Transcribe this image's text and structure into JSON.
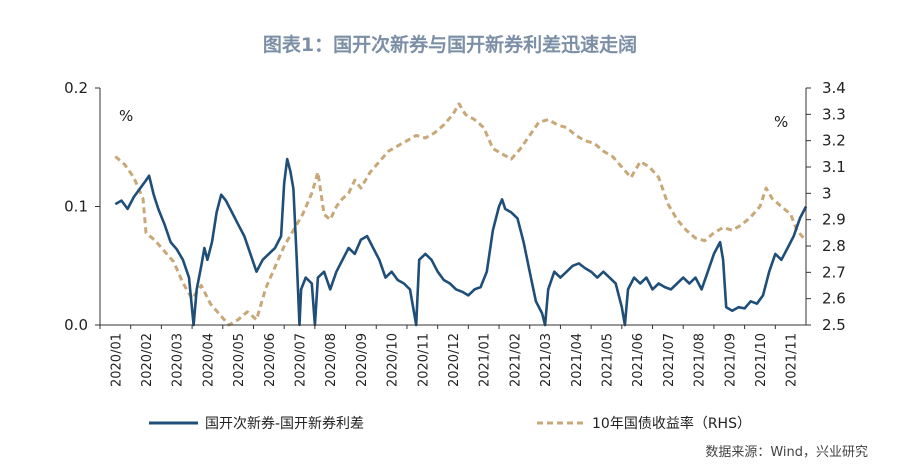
{
  "chart_data": {
    "type": "line",
    "title": "图表1：国开次新券与国开新券利差迅速走阔",
    "left_unit": "%",
    "right_unit": "%",
    "y_left_ticks": [
      "0.2",
      "0.1",
      "0.0"
    ],
    "y_right_ticks": [
      "3.4",
      "3.3",
      "3.2",
      "3.1",
      "3",
      "2.9",
      "2.8",
      "2.7",
      "2.6",
      "2.5"
    ],
    "ylim_left": [
      0,
      0.2
    ],
    "ylim_right": [
      2.5,
      3.4
    ],
    "x_ticks": [
      "2020/01",
      "2020/02",
      "2020/03",
      "2020/04",
      "2020/05",
      "2020/06",
      "2020/07",
      "2020/08",
      "2020/09",
      "2020/10",
      "2020/11",
      "2020/12",
      "2021/01",
      "2021/02",
      "2021/03",
      "2021/04",
      "2021/05",
      "2021/06",
      "2021/07",
      "2021/08",
      "2021/09",
      "2021/10",
      "2021/11"
    ],
    "source": "数据来源：Wind，兴业研究",
    "colors": {
      "spread": "#1f4e79",
      "yield": "#c8a878",
      "title": "#7c8fa6"
    },
    "series": [
      {
        "name": "国开次新券-国开新券利差",
        "axis": "left",
        "style": "solid",
        "points": [
          [
            0.0,
            0.102
          ],
          [
            0.2,
            0.105
          ],
          [
            0.4,
            0.098
          ],
          [
            0.6,
            0.108
          ],
          [
            0.8,
            0.115
          ],
          [
            1.0,
            0.122
          ],
          [
            1.1,
            0.126
          ],
          [
            1.25,
            0.11
          ],
          [
            1.4,
            0.098
          ],
          [
            1.6,
            0.085
          ],
          [
            1.8,
            0.07
          ],
          [
            2.0,
            0.064
          ],
          [
            2.2,
            0.055
          ],
          [
            2.4,
            0.04
          ],
          [
            2.55,
            0.0
          ],
          [
            2.65,
            0.03
          ],
          [
            2.8,
            0.05
          ],
          [
            2.9,
            0.065
          ],
          [
            3.0,
            0.055
          ],
          [
            3.15,
            0.07
          ],
          [
            3.3,
            0.095
          ],
          [
            3.45,
            0.11
          ],
          [
            3.6,
            0.105
          ],
          [
            3.8,
            0.095
          ],
          [
            4.0,
            0.085
          ],
          [
            4.2,
            0.075
          ],
          [
            4.4,
            0.06
          ],
          [
            4.6,
            0.045
          ],
          [
            4.8,
            0.055
          ],
          [
            5.0,
            0.06
          ],
          [
            5.2,
            0.065
          ],
          [
            5.4,
            0.075
          ],
          [
            5.5,
            0.12
          ],
          [
            5.6,
            0.14
          ],
          [
            5.7,
            0.13
          ],
          [
            5.8,
            0.115
          ],
          [
            5.9,
            0.06
          ],
          [
            6.0,
            0.0
          ],
          [
            6.05,
            0.03
          ],
          [
            6.2,
            0.04
          ],
          [
            6.4,
            0.035
          ],
          [
            6.5,
            0.0
          ],
          [
            6.6,
            0.04
          ],
          [
            6.8,
            0.045
          ],
          [
            7.0,
            0.03
          ],
          [
            7.2,
            0.045
          ],
          [
            7.4,
            0.055
          ],
          [
            7.6,
            0.065
          ],
          [
            7.8,
            0.06
          ],
          [
            8.0,
            0.072
          ],
          [
            8.2,
            0.075
          ],
          [
            8.4,
            0.065
          ],
          [
            8.6,
            0.055
          ],
          [
            8.8,
            0.04
          ],
          [
            9.0,
            0.045
          ],
          [
            9.2,
            0.038
          ],
          [
            9.4,
            0.035
          ],
          [
            9.6,
            0.03
          ],
          [
            9.8,
            0.0
          ],
          [
            9.9,
            0.055
          ],
          [
            10.1,
            0.06
          ],
          [
            10.3,
            0.055
          ],
          [
            10.5,
            0.045
          ],
          [
            10.7,
            0.038
          ],
          [
            10.9,
            0.035
          ],
          [
            11.1,
            0.03
          ],
          [
            11.3,
            0.028
          ],
          [
            11.5,
            0.025
          ],
          [
            11.7,
            0.03
          ],
          [
            11.9,
            0.032
          ],
          [
            12.1,
            0.045
          ],
          [
            12.3,
            0.08
          ],
          [
            12.5,
            0.1
          ],
          [
            12.6,
            0.106
          ],
          [
            12.7,
            0.098
          ],
          [
            12.9,
            0.095
          ],
          [
            13.1,
            0.09
          ],
          [
            13.3,
            0.07
          ],
          [
            13.5,
            0.045
          ],
          [
            13.7,
            0.02
          ],
          [
            13.9,
            0.01
          ],
          [
            14.0,
            0.0
          ],
          [
            14.1,
            0.03
          ],
          [
            14.3,
            0.045
          ],
          [
            14.5,
            0.04
          ],
          [
            14.7,
            0.045
          ],
          [
            14.9,
            0.05
          ],
          [
            15.1,
            0.052
          ],
          [
            15.3,
            0.048
          ],
          [
            15.5,
            0.045
          ],
          [
            15.7,
            0.04
          ],
          [
            15.9,
            0.045
          ],
          [
            16.1,
            0.04
          ],
          [
            16.3,
            0.035
          ],
          [
            16.5,
            0.015
          ],
          [
            16.6,
            0.0
          ],
          [
            16.7,
            0.03
          ],
          [
            16.9,
            0.04
          ],
          [
            17.1,
            0.035
          ],
          [
            17.3,
            0.04
          ],
          [
            17.5,
            0.03
          ],
          [
            17.7,
            0.035
          ],
          [
            17.9,
            0.032
          ],
          [
            18.1,
            0.03
          ],
          [
            18.3,
            0.035
          ],
          [
            18.5,
            0.04
          ],
          [
            18.7,
            0.035
          ],
          [
            18.9,
            0.04
          ],
          [
            19.1,
            0.03
          ],
          [
            19.3,
            0.045
          ],
          [
            19.5,
            0.06
          ],
          [
            19.7,
            0.07
          ],
          [
            19.8,
            0.055
          ],
          [
            19.9,
            0.015
          ],
          [
            20.1,
            0.012
          ],
          [
            20.3,
            0.015
          ],
          [
            20.5,
            0.014
          ],
          [
            20.7,
            0.02
          ],
          [
            20.9,
            0.018
          ],
          [
            21.1,
            0.025
          ],
          [
            21.3,
            0.045
          ],
          [
            21.5,
            0.06
          ],
          [
            21.7,
            0.055
          ],
          [
            21.9,
            0.065
          ],
          [
            22.1,
            0.075
          ],
          [
            22.3,
            0.09
          ],
          [
            22.5,
            0.1
          ]
        ]
      },
      {
        "name": "10年国债收益率（RHS）",
        "axis": "right",
        "style": "dashed",
        "points": [
          [
            0.0,
            3.14
          ],
          [
            0.3,
            3.11
          ],
          [
            0.6,
            3.06
          ],
          [
            0.9,
            2.98
          ],
          [
            1.0,
            2.85
          ],
          [
            1.3,
            2.82
          ],
          [
            1.6,
            2.78
          ],
          [
            1.9,
            2.74
          ],
          [
            2.2,
            2.66
          ],
          [
            2.5,
            2.6
          ],
          [
            2.8,
            2.65
          ],
          [
            3.1,
            2.58
          ],
          [
            3.4,
            2.54
          ],
          [
            3.7,
            2.5
          ],
          [
            4.0,
            2.52
          ],
          [
            4.3,
            2.55
          ],
          [
            4.6,
            2.52
          ],
          [
            4.9,
            2.64
          ],
          [
            5.2,
            2.72
          ],
          [
            5.5,
            2.8
          ],
          [
            5.8,
            2.86
          ],
          [
            6.1,
            2.92
          ],
          [
            6.4,
            3.0
          ],
          [
            6.6,
            3.08
          ],
          [
            6.8,
            2.92
          ],
          [
            7.0,
            2.9
          ],
          [
            7.2,
            2.95
          ],
          [
            7.4,
            2.98
          ],
          [
            7.6,
            3.0
          ],
          [
            7.8,
            3.05
          ],
          [
            8.0,
            3.02
          ],
          [
            8.3,
            3.08
          ],
          [
            8.6,
            3.12
          ],
          [
            8.9,
            3.16
          ],
          [
            9.2,
            3.18
          ],
          [
            9.5,
            3.2
          ],
          [
            9.8,
            3.22
          ],
          [
            10.1,
            3.21
          ],
          [
            10.4,
            3.23
          ],
          [
            10.7,
            3.26
          ],
          [
            11.0,
            3.3
          ],
          [
            11.2,
            3.34
          ],
          [
            11.4,
            3.3
          ],
          [
            11.7,
            3.28
          ],
          [
            12.0,
            3.25
          ],
          [
            12.3,
            3.17
          ],
          [
            12.6,
            3.15
          ],
          [
            12.9,
            3.13
          ],
          [
            13.2,
            3.17
          ],
          [
            13.5,
            3.22
          ],
          [
            13.8,
            3.27
          ],
          [
            14.1,
            3.28
          ],
          [
            14.4,
            3.26
          ],
          [
            14.7,
            3.25
          ],
          [
            15.0,
            3.22
          ],
          [
            15.3,
            3.2
          ],
          [
            15.6,
            3.19
          ],
          [
            15.9,
            3.16
          ],
          [
            16.2,
            3.14
          ],
          [
            16.5,
            3.1
          ],
          [
            16.8,
            3.06
          ],
          [
            17.1,
            3.12
          ],
          [
            17.4,
            3.1
          ],
          [
            17.7,
            3.06
          ],
          [
            18.0,
            2.96
          ],
          [
            18.3,
            2.9
          ],
          [
            18.6,
            2.86
          ],
          [
            18.9,
            2.83
          ],
          [
            19.2,
            2.82
          ],
          [
            19.5,
            2.85
          ],
          [
            19.8,
            2.87
          ],
          [
            20.1,
            2.86
          ],
          [
            20.4,
            2.88
          ],
          [
            20.7,
            2.91
          ],
          [
            21.0,
            2.95
          ],
          [
            21.2,
            3.02
          ],
          [
            21.4,
            2.98
          ],
          [
            21.7,
            2.95
          ],
          [
            22.0,
            2.92
          ],
          [
            22.2,
            2.86
          ],
          [
            22.5,
            2.82
          ]
        ]
      }
    ]
  }
}
